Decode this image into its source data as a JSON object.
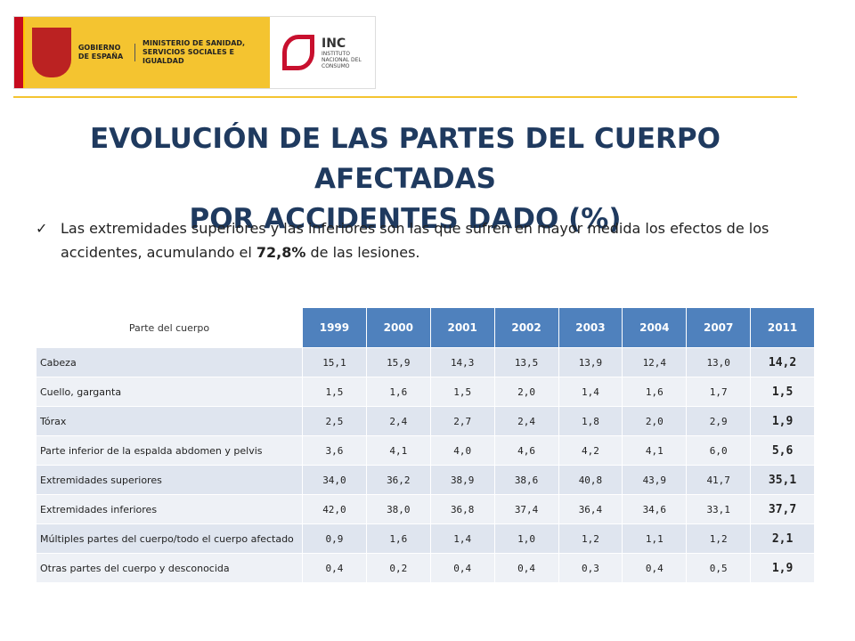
{
  "header": {
    "gobierno": "GOBIERNO DE ESPAÑA",
    "ministerio": "MINISTERIO DE SANIDAD, SERVICIOS SOCIALES E IGUALDAD",
    "inc": "INC",
    "inc_name": "INSTITUTO NACIONAL DEL CONSUMO"
  },
  "title": [
    "EVOLUCIÓN DE LAS PARTES DEL CUERPO AFECTADAS",
    "POR ACCIDENTES DADO (%)"
  ],
  "bullet": {
    "before": "Las extremidades superiores y las inferiores son las que sufren en mayor medida los efectos de los accidentes, acumulando el ",
    "bold": "72,8%",
    "after": " de las lesiones."
  },
  "table": {
    "header": [
      "Parte del cuerpo",
      "1999",
      "2000",
      "2001",
      "2002",
      "2003",
      "2004",
      "2007",
      "2011"
    ],
    "rows": [
      [
        "Cabeza",
        "15,1",
        "15,9",
        "14,3",
        "13,5",
        "13,9",
        "12,4",
        "13,0",
        "14,2"
      ],
      [
        "Cuello, garganta",
        "1,5",
        "1,6",
        "1,5",
        "2,0",
        "1,4",
        "1,6",
        "1,7",
        "1,5"
      ],
      [
        "Tórax",
        "2,5",
        "2,4",
        "2,7",
        "2,4",
        "1,8",
        "2,0",
        "2,9",
        "1,9"
      ],
      [
        "Parte inferior de la espalda abdomen y pelvis",
        "3,6",
        "4,1",
        "4,0",
        "4,6",
        "4,2",
        "4,1",
        "6,0",
        "5,6"
      ],
      [
        "Extremidades superiores",
        "34,0",
        "36,2",
        "38,9",
        "38,6",
        "40,8",
        "43,9",
        "41,7",
        "35,1"
      ],
      [
        "Extremidades inferiores",
        "42,0",
        "38,0",
        "36,8",
        "37,4",
        "36,4",
        "34,6",
        "33,1",
        "37,7"
      ],
      [
        "Múltiples partes del cuerpo/todo el cuerpo afectado",
        "0,9",
        "1,6",
        "1,4",
        "1,0",
        "1,2",
        "1,1",
        "1,2",
        "2,1"
      ],
      [
        "Otras partes del cuerpo y desconocida",
        "0,4",
        "0,2",
        "0,4",
        "0,4",
        "0,3",
        "0,4",
        "0,5",
        "1,9"
      ]
    ]
  }
}
